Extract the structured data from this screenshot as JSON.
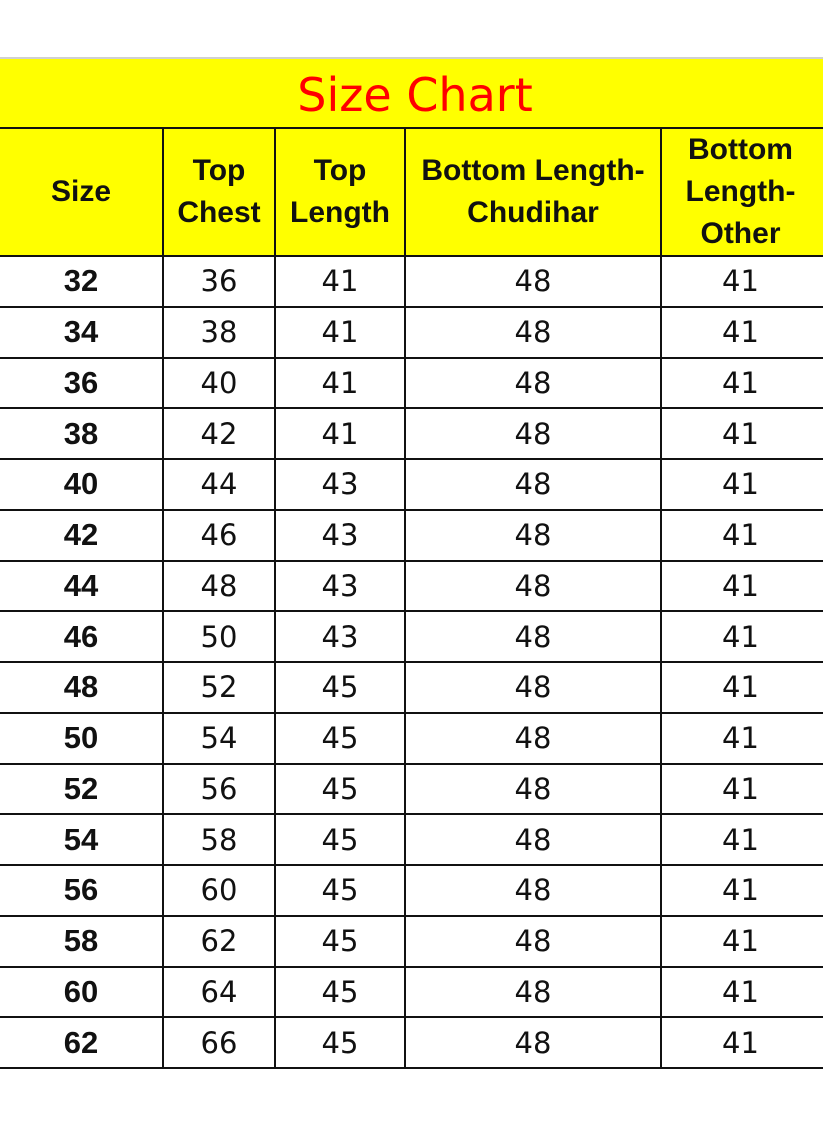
{
  "title": "Size Chart",
  "colors": {
    "header_bg": "#ffff00",
    "title_text": "#ff0000"
  },
  "headers": [
    "Size",
    "Top Chest",
    "Top Length",
    "Bottom Length-Chudihar",
    "Bottom Length-Other"
  ],
  "rows": [
    [
      "32",
      "36",
      "41",
      "48",
      "41"
    ],
    [
      "34",
      "38",
      "41",
      "48",
      "41"
    ],
    [
      "36",
      "40",
      "41",
      "48",
      "41"
    ],
    [
      "38",
      "42",
      "41",
      "48",
      "41"
    ],
    [
      "40",
      "44",
      "43",
      "48",
      "41"
    ],
    [
      "42",
      "46",
      "43",
      "48",
      "41"
    ],
    [
      "44",
      "48",
      "43",
      "48",
      "41"
    ],
    [
      "46",
      "50",
      "43",
      "48",
      "41"
    ],
    [
      "48",
      "52",
      "45",
      "48",
      "41"
    ],
    [
      "50",
      "54",
      "45",
      "48",
      "41"
    ],
    [
      "52",
      "56",
      "45",
      "48",
      "41"
    ],
    [
      "54",
      "58",
      "45",
      "48",
      "41"
    ],
    [
      "56",
      "60",
      "45",
      "48",
      "41"
    ],
    [
      "58",
      "62",
      "45",
      "48",
      "41"
    ],
    [
      "60",
      "64",
      "45",
      "48",
      "41"
    ],
    [
      "62",
      "66",
      "45",
      "48",
      "41"
    ]
  ]
}
